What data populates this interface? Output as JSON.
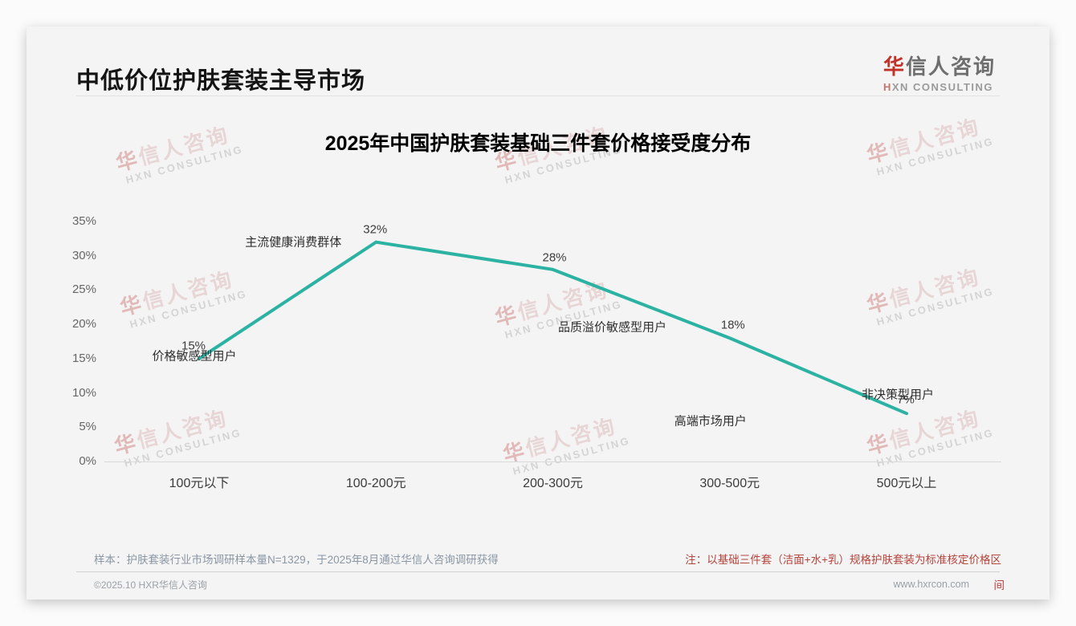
{
  "page": {
    "header": {
      "title": "中低价位护肤套装主导市场"
    },
    "logo": {
      "cn_first": "华",
      "cn_rest": "信人咨询",
      "en_first": "H",
      "en_rest": "XN CONSULTING"
    },
    "watermark": {
      "cn": "华信人咨询",
      "en": "HXN CONSULTING"
    },
    "footer": {
      "sample_note": "样本：护肤套装行业市场调研样本量N=1329，于2025年8月通过华信人咨询调研获得",
      "price_note_line1": "注：以基础三件套（洁面+水+乳）规格护肤套装为标准核定价格区",
      "price_note_wrap": "间",
      "copyright": "©2025.10 HXR华信人咨询",
      "website": "www.hxrcon.com"
    }
  },
  "chart_data": {
    "type": "line",
    "title": "2025年中国护肤套装基础三件套价格接受度分布",
    "categories": [
      "100元以下",
      "100-200元",
      "200-300元",
      "300-500元",
      "500元以上"
    ],
    "values": [
      15,
      32,
      28,
      18,
      7
    ],
    "value_labels": [
      "15%",
      "32%",
      "28%",
      "18%",
      "7%"
    ],
    "annotations": [
      "价格敏感型用户",
      "主流健康消费群体",
      "品质溢价敏感型用户",
      "高端市场用户",
      "非决策型用户"
    ],
    "xlabel": "",
    "ylabel": "",
    "y_tick_labels": [
      "35%",
      "30%",
      "25%",
      "20%",
      "15%",
      "10%",
      "5%",
      "0%"
    ],
    "ylim": [
      0,
      35
    ],
    "y_tick_step": 5,
    "line_color": "#2bb2a2",
    "grid": false,
    "legend": false
  }
}
